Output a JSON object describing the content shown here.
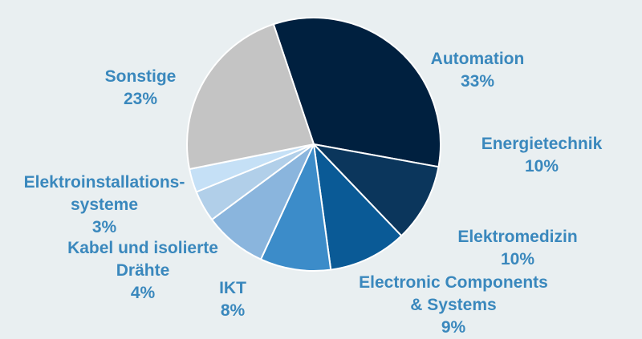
{
  "chart_data": {
    "type": "pie",
    "title": "",
    "slices": [
      {
        "name": "Automation",
        "value": 33,
        "label": "33%",
        "color": "#00203f"
      },
      {
        "name": "Energietechnik",
        "value": 10,
        "label": "10%",
        "color": "#0b365c"
      },
      {
        "name": "Elektromedizin",
        "value": 10,
        "label": "10%",
        "color": "#0a5a96"
      },
      {
        "name": "Electronic Components & Systems",
        "value": 9,
        "label": "9%",
        "color": "#3c8cc9"
      },
      {
        "name": "IKT",
        "value": 8,
        "label": "8%",
        "color": "#8ab5dd"
      },
      {
        "name": "Kabel und isolierte Drähte",
        "value": 4,
        "label": "4%",
        "color": "#b1cfe9"
      },
      {
        "name": "Elektroinstallations-systeme",
        "value": 3,
        "label": "3%",
        "color": "#c5e0f6"
      },
      {
        "name": "Sonstige",
        "value": 23,
        "label": "23%",
        "color": "#c4c4c4"
      }
    ],
    "label_color": "#3a88bd"
  },
  "labels": {
    "automation": {
      "name": "Automation",
      "pct": "33%"
    },
    "energietechnik": {
      "name": "Energietechnik",
      "pct": "10%"
    },
    "elektromedizin": {
      "name": "Elektromedizin",
      "pct": "10%"
    },
    "ecs": {
      "line1": "Electronic Components",
      "line2": "& Systems",
      "pct": "9%"
    },
    "ikt": {
      "name": "IKT",
      "pct": "8%"
    },
    "kabel": {
      "line1": "Kabel und isolierte",
      "line2": "Drähte",
      "pct": "4%"
    },
    "elektroinst": {
      "line1": "Elektroinstallations-",
      "line2": "systeme",
      "pct": "3%"
    },
    "sonstige": {
      "name": "Sonstige",
      "pct": "23%"
    }
  }
}
